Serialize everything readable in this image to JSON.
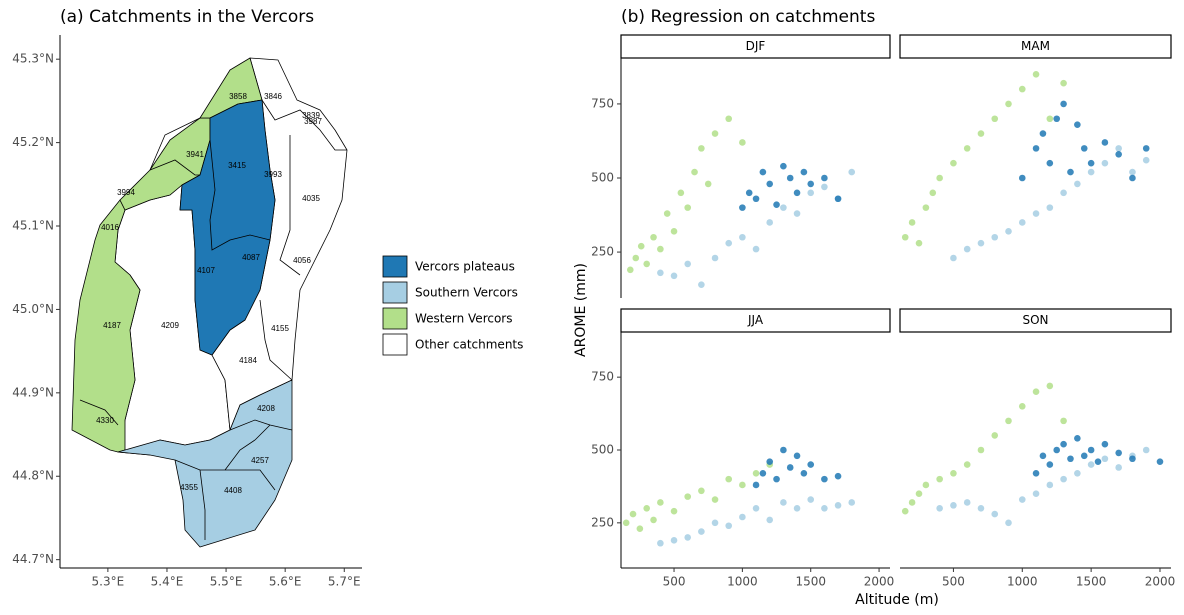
{
  "chart_data": [
    {
      "type": "map",
      "title": "(a) Catchments in the Vercors",
      "xlim": [
        5.219,
        5.73
      ],
      "ylim": [
        44.69,
        45.329
      ],
      "xticks": [
        {
          "value": 5.3,
          "label": "5.3°E"
        },
        {
          "value": 5.4,
          "label": "5.4°E"
        },
        {
          "value": 5.5,
          "label": "5.5°E"
        },
        {
          "value": 5.6,
          "label": "5.6°E"
        },
        {
          "value": 5.7,
          "label": "5.7°E"
        }
      ],
      "yticks": [
        {
          "value": 44.7,
          "label": "44.7°N"
        },
        {
          "value": 44.8,
          "label": "44.8°N"
        },
        {
          "value": 44.9,
          "label": "44.9°N"
        },
        {
          "value": 45.0,
          "label": "45.0°N"
        },
        {
          "value": 45.1,
          "label": "45.1°N"
        },
        {
          "value": 45.2,
          "label": "45.2°N"
        },
        {
          "value": 45.3,
          "label": "45.3°N"
        }
      ],
      "catchments": [
        "3858",
        "3846",
        "3839",
        "3987",
        "3941",
        "3415",
        "3993",
        "4035",
        "3994",
        "4016",
        "4107",
        "4087",
        "4056",
        "4187",
        "4209",
        "4155",
        "4184",
        "4330",
        "4208",
        "4257",
        "4355",
        "4408"
      ],
      "legend_position": "right",
      "legend": [
        {
          "name": "Vercors plateaus",
          "color": "#1f78b4"
        },
        {
          "name": "Southern Vercors",
          "color": "#a6cee3"
        },
        {
          "name": "Western Vercors",
          "color": "#b2df8a"
        },
        {
          "name": "Other catchments",
          "color": "#ffffff"
        }
      ]
    },
    {
      "type": "scatter",
      "title": "(b) Regression on catchments",
      "x_label": "Altitude (m)",
      "y_label": "AROME (mm)",
      "xlim": [
        112,
        2080
      ],
      "ylim": [
        95,
        905
      ],
      "xticks": [
        500,
        1000,
        1500,
        2000
      ],
      "yticks": [
        250,
        500,
        750
      ],
      "facets": [
        {
          "name": "DJF",
          "series": [
            {
              "color": "#b2df8a",
              "x": [
                180,
                220,
                260,
                300,
                350,
                400,
                450,
                500,
                550,
                600,
                650,
                700,
                750,
                800,
                900,
                1000
              ],
              "y": [
                190,
                230,
                270,
                210,
                300,
                260,
                380,
                320,
                450,
                400,
                520,
                600,
                480,
                650,
                700,
                620
              ]
            },
            {
              "color": "#a6cee3",
              "x": [
                400,
                500,
                600,
                700,
                800,
                900,
                1000,
                1100,
                1200,
                1300,
                1400,
                1500,
                1600,
                1700,
                1800
              ],
              "y": [
                180,
                170,
                210,
                140,
                230,
                280,
                300,
                260,
                350,
                400,
                380,
                450,
                470,
                430,
                520
              ]
            },
            {
              "color": "#1f78b4",
              "x": [
                1000,
                1050,
                1100,
                1150,
                1200,
                1250,
                1300,
                1350,
                1400,
                1450,
                1500,
                1600,
                1700
              ],
              "y": [
                400,
                450,
                430,
                520,
                480,
                410,
                540,
                500,
                450,
                520,
                480,
                500,
                430
              ]
            }
          ]
        },
        {
          "name": "MAM",
          "series": [
            {
              "color": "#b2df8a",
              "x": [
                150,
                200,
                250,
                300,
                350,
                400,
                500,
                600,
                700,
                800,
                900,
                1000,
                1100,
                1200,
                1300
              ],
              "y": [
                300,
                350,
                280,
                400,
                450,
                500,
                550,
                600,
                650,
                700,
                750,
                800,
                850,
                700,
                820
              ]
            },
            {
              "color": "#a6cee3",
              "x": [
                500,
                600,
                700,
                800,
                900,
                1000,
                1100,
                1200,
                1300,
                1400,
                1500,
                1600,
                1700,
                1800,
                1900
              ],
              "y": [
                230,
                260,
                280,
                300,
                320,
                350,
                380,
                400,
                450,
                480,
                520,
                550,
                600,
                520,
                560
              ]
            },
            {
              "color": "#1f78b4",
              "x": [
                1000,
                1100,
                1150,
                1200,
                1250,
                1300,
                1350,
                1400,
                1450,
                1500,
                1600,
                1700,
                1800,
                1900
              ],
              "y": [
                500,
                600,
                650,
                550,
                700,
                750,
                520,
                680,
                600,
                550,
                620,
                580,
                500,
                600
              ]
            }
          ]
        },
        {
          "name": "JJA",
          "series": [
            {
              "color": "#b2df8a",
              "x": [
                150,
                200,
                250,
                300,
                350,
                400,
                500,
                600,
                700,
                800,
                900,
                1000,
                1100,
                1200
              ],
              "y": [
                250,
                280,
                230,
                300,
                260,
                320,
                290,
                340,
                360,
                330,
                400,
                380,
                420,
                450
              ]
            },
            {
              "color": "#a6cee3",
              "x": [
                400,
                500,
                600,
                700,
                800,
                900,
                1000,
                1100,
                1200,
                1300,
                1400,
                1500,
                1600,
                1700,
                1800
              ],
              "y": [
                180,
                190,
                200,
                220,
                250,
                240,
                270,
                300,
                260,
                320,
                300,
                330,
                300,
                310,
                320
              ]
            },
            {
              "color": "#1f78b4",
              "x": [
                1100,
                1150,
                1200,
                1250,
                1300,
                1350,
                1400,
                1450,
                1500,
                1600,
                1700
              ],
              "y": [
                380,
                420,
                460,
                400,
                500,
                440,
                480,
                420,
                450,
                400,
                410
              ]
            }
          ]
        },
        {
          "name": "SON",
          "series": [
            {
              "color": "#b2df8a",
              "x": [
                150,
                200,
                250,
                300,
                400,
                500,
                600,
                700,
                800,
                900,
                1000,
                1100,
                1200,
                1300
              ],
              "y": [
                290,
                320,
                350,
                380,
                400,
                420,
                450,
                500,
                550,
                600,
                650,
                700,
                720,
                600
              ]
            },
            {
              "color": "#a6cee3",
              "x": [
                400,
                500,
                600,
                700,
                800,
                900,
                1000,
                1100,
                1200,
                1300,
                1400,
                1500,
                1600,
                1700,
                1800,
                1900
              ],
              "y": [
                300,
                310,
                320,
                300,
                280,
                250,
                330,
                350,
                380,
                400,
                420,
                450,
                470,
                440,
                480,
                500
              ]
            },
            {
              "color": "#1f78b4",
              "x": [
                1100,
                1150,
                1200,
                1250,
                1300,
                1350,
                1400,
                1450,
                1500,
                1550,
                1600,
                1700,
                1800,
                2000
              ],
              "y": [
                420,
                480,
                450,
                500,
                520,
                470,
                540,
                480,
                500,
                460,
                520,
                490,
                470,
                460
              ]
            }
          ]
        }
      ]
    }
  ]
}
